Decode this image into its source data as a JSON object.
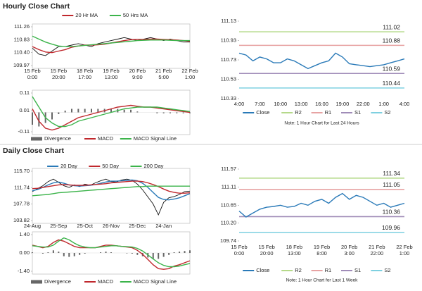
{
  "section_titles": [
    "Hourly Close Chart",
    "Daily Close Chart"
  ],
  "chart_data": [
    {
      "type": "line",
      "legend": "top",
      "categories": [
        "15 Feb 0:00",
        null,
        null,
        null,
        "15 Feb 20:00",
        null,
        null,
        null,
        "18 Feb 17:00",
        null,
        null,
        null,
        "19 Feb 13:00",
        null,
        null,
        null,
        "20 Feb 9:00",
        null,
        null,
        null,
        "21 Feb 5:00",
        null,
        null,
        null,
        "22 Feb 1:00"
      ],
      "ylim": [
        109.97,
        111.26
      ],
      "yticks": [
        109.97,
        {
          "value": 110.4,
          "label": "110.40"
        },
        110.83,
        111.26
      ],
      "series": [
        {
          "name": null,
          "color": "#111111",
          "values": [
            110.55,
            110.35,
            110.3,
            110.45,
            110.6,
            110.6,
            110.65,
            110.7,
            110.65,
            110.6,
            110.7,
            110.75,
            110.8,
            110.85,
            110.9,
            110.85,
            110.8,
            110.85,
            110.9,
            110.85,
            110.8,
            110.85,
            110.8,
            110.75,
            110.75
          ]
        },
        {
          "name": "20 Hr MA",
          "color": "#c0282d",
          "values": [
            110.6,
            110.5,
            110.42,
            110.4,
            110.45,
            110.5,
            110.58,
            110.62,
            110.65,
            110.65,
            110.66,
            110.68,
            110.72,
            110.76,
            110.8,
            110.83,
            110.84,
            110.84,
            110.85,
            110.85,
            110.84,
            110.83,
            110.82,
            110.8,
            110.78
          ]
        },
        {
          "name": "50 Hrs MA",
          "color": "#3cb44b",
          "values": [
            110.95,
            110.85,
            110.75,
            110.68,
            110.62,
            110.6,
            110.6,
            110.62,
            110.64,
            110.66,
            110.68,
            110.7,
            110.72,
            110.74,
            110.76,
            110.78,
            110.8,
            110.81,
            110.82,
            110.82,
            110.82,
            110.81,
            110.8,
            110.8,
            110.8
          ]
        }
      ]
    },
    {
      "type": "combo",
      "legend": "bottom",
      "ylim": [
        -0.11,
        0.11
      ],
      "yticks": [
        -0.11,
        0.01,
        0.11
      ],
      "series": [
        {
          "name": "Divergence",
          "kind": "bar",
          "color": "#666666",
          "values": [
            -0.07,
            -0.08,
            -0.06,
            -0.04,
            -0.01,
            0.01,
            0.02,
            0.02,
            0.02,
            0.02,
            0.02,
            0.02,
            0.02,
            0.02,
            0.015,
            0.015,
            0.005,
            0,
            0,
            -0.005,
            -0.005,
            -0.005,
            -0.005,
            -0.005,
            -0.005
          ]
        },
        {
          "name": "MACD",
          "kind": "line",
          "color": "#c0282d",
          "values": [
            0.02,
            -0.05,
            -0.09,
            -0.1,
            -0.09,
            -0.07,
            -0.05,
            -0.03,
            -0.02,
            -0.01,
            0,
            0.01,
            0.02,
            0.03,
            0.035,
            0.04,
            0.035,
            0.03,
            0.03,
            0.025,
            0.02,
            0.015,
            0.01,
            0.005,
            0
          ]
        },
        {
          "name": "MACD Signal Line",
          "kind": "line",
          "color": "#3cb44b",
          "values": [
            0.09,
            0.03,
            -0.03,
            -0.06,
            -0.08,
            -0.08,
            -0.07,
            -0.05,
            -0.04,
            -0.03,
            -0.02,
            -0.01,
            0,
            0.01,
            0.02,
            0.025,
            0.03,
            0.03,
            0.03,
            0.03,
            0.025,
            0.02,
            0.015,
            0.01,
            0.005
          ]
        }
      ]
    },
    {
      "type": "line",
      "legend": "bottom",
      "note": "Note: 1 Hour Chart for Last 24 Hours",
      "categories": [
        "4:00",
        null,
        null,
        "7:00",
        null,
        null,
        "10:00",
        null,
        null,
        "13:00",
        null,
        null,
        "16:00",
        null,
        null,
        "19:00",
        null,
        null,
        "22:00",
        null,
        null,
        "1:00",
        null,
        null,
        "4:00"
      ],
      "ylim": [
        110.33,
        111.13
      ],
      "yticks": [
        110.33,
        110.53,
        110.73,
        110.93,
        111.13
      ],
      "series": [
        {
          "name": "Close",
          "color": "#2a7ab8",
          "values": [
            110.8,
            110.78,
            110.72,
            110.76,
            110.74,
            110.7,
            110.7,
            110.74,
            110.72,
            110.68,
            110.64,
            110.67,
            110.7,
            110.72,
            110.8,
            110.76,
            110.69,
            110.68,
            110.67,
            110.66,
            110.67,
            110.68,
            110.7,
            110.72,
            110.74
          ]
        }
      ],
      "levels": [
        {
          "name": "R2",
          "color": "#b5d98a",
          "value": 111.02
        },
        {
          "name": "R1",
          "color": "#e7a3a3",
          "value": 110.88
        },
        {
          "name": "S1",
          "color": "#a08cb8",
          "value": 110.59
        },
        {
          "name": "S2",
          "color": "#7ed0e0",
          "value": 110.44
        }
      ]
    },
    {
      "type": "line",
      "legend": "top",
      "categories": [
        "24-Aug",
        null,
        null,
        null,
        null,
        "25-Sep",
        null,
        null,
        null,
        null,
        "25-Oct",
        null,
        null,
        null,
        null,
        "26-Nov",
        null,
        null,
        null,
        null,
        "25-Dec",
        null,
        null,
        null,
        null,
        "24-Jan",
        null,
        null,
        null,
        null,
        null
      ],
      "ylim": [
        103.82,
        115.7
      ],
      "yticks": [
        103.82,
        107.78,
        111.74,
        {
          "value": 115.7,
          "label": "115.70"
        }
      ],
      "series": [
        {
          "name": null,
          "color": "#111111",
          "values": [
            110.8,
            111.5,
            112.2,
            113.2,
            113.8,
            113,
            112.2,
            111.8,
            112.4,
            112,
            112.6,
            112.3,
            112.9,
            113.4,
            113.8,
            113.2,
            113.1,
            113.6,
            113.8,
            113.5,
            112.6,
            111.2,
            109.5,
            107.8,
            105.2,
            108.2,
            109.3,
            109.6,
            110.1,
            110.8,
            110.9
          ]
        },
        {
          "name": "20 Day",
          "color": "#2a7ab8",
          "values": [
            111,
            111.3,
            111.8,
            112.4,
            112.9,
            113.1,
            112.8,
            112.4,
            112.2,
            112.1,
            112.2,
            112.3,
            112.5,
            112.8,
            113.1,
            113.3,
            113.3,
            113.4,
            113.5,
            113.6,
            113.4,
            112.8,
            111.8,
            110.6,
            109.4,
            108.9,
            108.8,
            109,
            109.3,
            109.8,
            110.3
          ]
        },
        {
          "name": "50 Day",
          "color": "#c0282d",
          "values": [
            111.5,
            111.6,
            111.8,
            112,
            112.2,
            112.4,
            112.5,
            112.4,
            112.3,
            112.3,
            112.3,
            112.4,
            112.5,
            112.6,
            112.7,
            112.9,
            113,
            113.1,
            113.2,
            113.3,
            113.3,
            113.2,
            112.9,
            112.5,
            112,
            111.4,
            110.9,
            110.6,
            110.4,
            110.4,
            110.5
          ]
        },
        {
          "name": "200 Day",
          "color": "#3cb44b",
          "values": [
            109.8,
            109.9,
            110,
            110.1,
            110.3,
            110.5,
            110.6,
            110.7,
            110.8,
            110.9,
            111,
            111.1,
            111.2,
            111.3,
            111.4,
            111.5,
            111.6,
            111.7,
            111.8,
            111.9,
            112,
            112,
            112.1,
            112.1,
            112.1,
            112.1,
            112.1,
            112.1,
            112.1,
            112.1,
            112.1
          ]
        }
      ]
    },
    {
      "type": "combo",
      "legend": "bottom",
      "ylim": [
        -1.4,
        1.4
      ],
      "yticks": [
        {
          "value": -1.4,
          "label": "-1.40"
        },
        {
          "value": 0,
          "label": "0.00"
        },
        {
          "value": 1.4,
          "label": "1.40"
        }
      ],
      "series": [
        {
          "name": "Divergence",
          "kind": "bar",
          "color": "#666666",
          "values": [
            0.05,
            0,
            -0.05,
            0.05,
            0.2,
            0.1,
            -0.25,
            -0.3,
            -0.25,
            -0.15,
            -0.05,
            0,
            0,
            0.05,
            0.1,
            0.05,
            0,
            0,
            -0.03,
            -0.05,
            -0.15,
            -0.25,
            -0.35,
            -0.45,
            -0.45,
            -0.3,
            -0.15,
            0.05,
            0.1,
            0.15,
            0.2
          ]
        },
        {
          "name": "MACD",
          "kind": "line",
          "color": "#c0282d",
          "values": [
            0.6,
            0.5,
            0.4,
            0.5,
            0.8,
            1.0,
            0.9,
            0.7,
            0.5,
            0.4,
            0.4,
            0.4,
            0.4,
            0.5,
            0.6,
            0.6,
            0.55,
            0.5,
            0.45,
            0.4,
            0.2,
            -0.1,
            -0.5,
            -0.9,
            -1.2,
            -1.25,
            -1.2,
            -1.0,
            -0.9,
            -0.75,
            -0.6
          ]
        },
        {
          "name": "MACD Signal Line",
          "kind": "line",
          "color": "#3cb44b",
          "values": [
            0.55,
            0.5,
            0.45,
            0.45,
            0.6,
            0.9,
            1.15,
            1.0,
            0.75,
            0.55,
            0.45,
            0.4,
            0.4,
            0.45,
            0.5,
            0.55,
            0.55,
            0.5,
            0.48,
            0.45,
            0.35,
            0.15,
            -0.15,
            -0.45,
            -0.75,
            -0.95,
            -1.05,
            -1.05,
            -1.0,
            -0.9,
            -0.8
          ]
        }
      ]
    },
    {
      "type": "line",
      "legend": "bottom",
      "note": "Note: 1 Hour Chart for Last 1 Week",
      "categories": [
        "15 Feb 0:00",
        null,
        null,
        null,
        "15 Feb 20:00",
        null,
        null,
        null,
        "18 Feb 13:00",
        null,
        null,
        null,
        "19 Feb 8:00",
        null,
        null,
        null,
        "20 Feb 3:00",
        null,
        null,
        null,
        "21 Feb 22:00",
        null,
        null,
        null,
        "22 Feb 1:00"
      ],
      "ylim": [
        109.74,
        111.57
      ],
      "yticks": [
        109.74,
        {
          "value": 110.2,
          "label": "110.20"
        },
        110.65,
        111.11,
        111.57
      ],
      "series": [
        {
          "name": "Close",
          "color": "#2a7ab8",
          "values": [
            110.5,
            110.35,
            110.45,
            110.55,
            110.6,
            110.62,
            110.65,
            110.6,
            110.62,
            110.7,
            110.65,
            110.75,
            110.8,
            110.7,
            110.85,
            110.95,
            110.8,
            110.9,
            110.85,
            110.75,
            110.65,
            110.7,
            110.6,
            110.65,
            110.7
          ]
        }
      ],
      "levels": [
        {
          "name": "R2",
          "color": "#b5d98a",
          "value": 111.34
        },
        {
          "name": "R1",
          "color": "#e7a3a3",
          "value": 111.05
        },
        {
          "name": "S1",
          "color": "#a08cb8",
          "value": 110.36
        },
        {
          "name": "S2",
          "color": "#7ed0e0",
          "value": 109.96
        }
      ]
    }
  ]
}
